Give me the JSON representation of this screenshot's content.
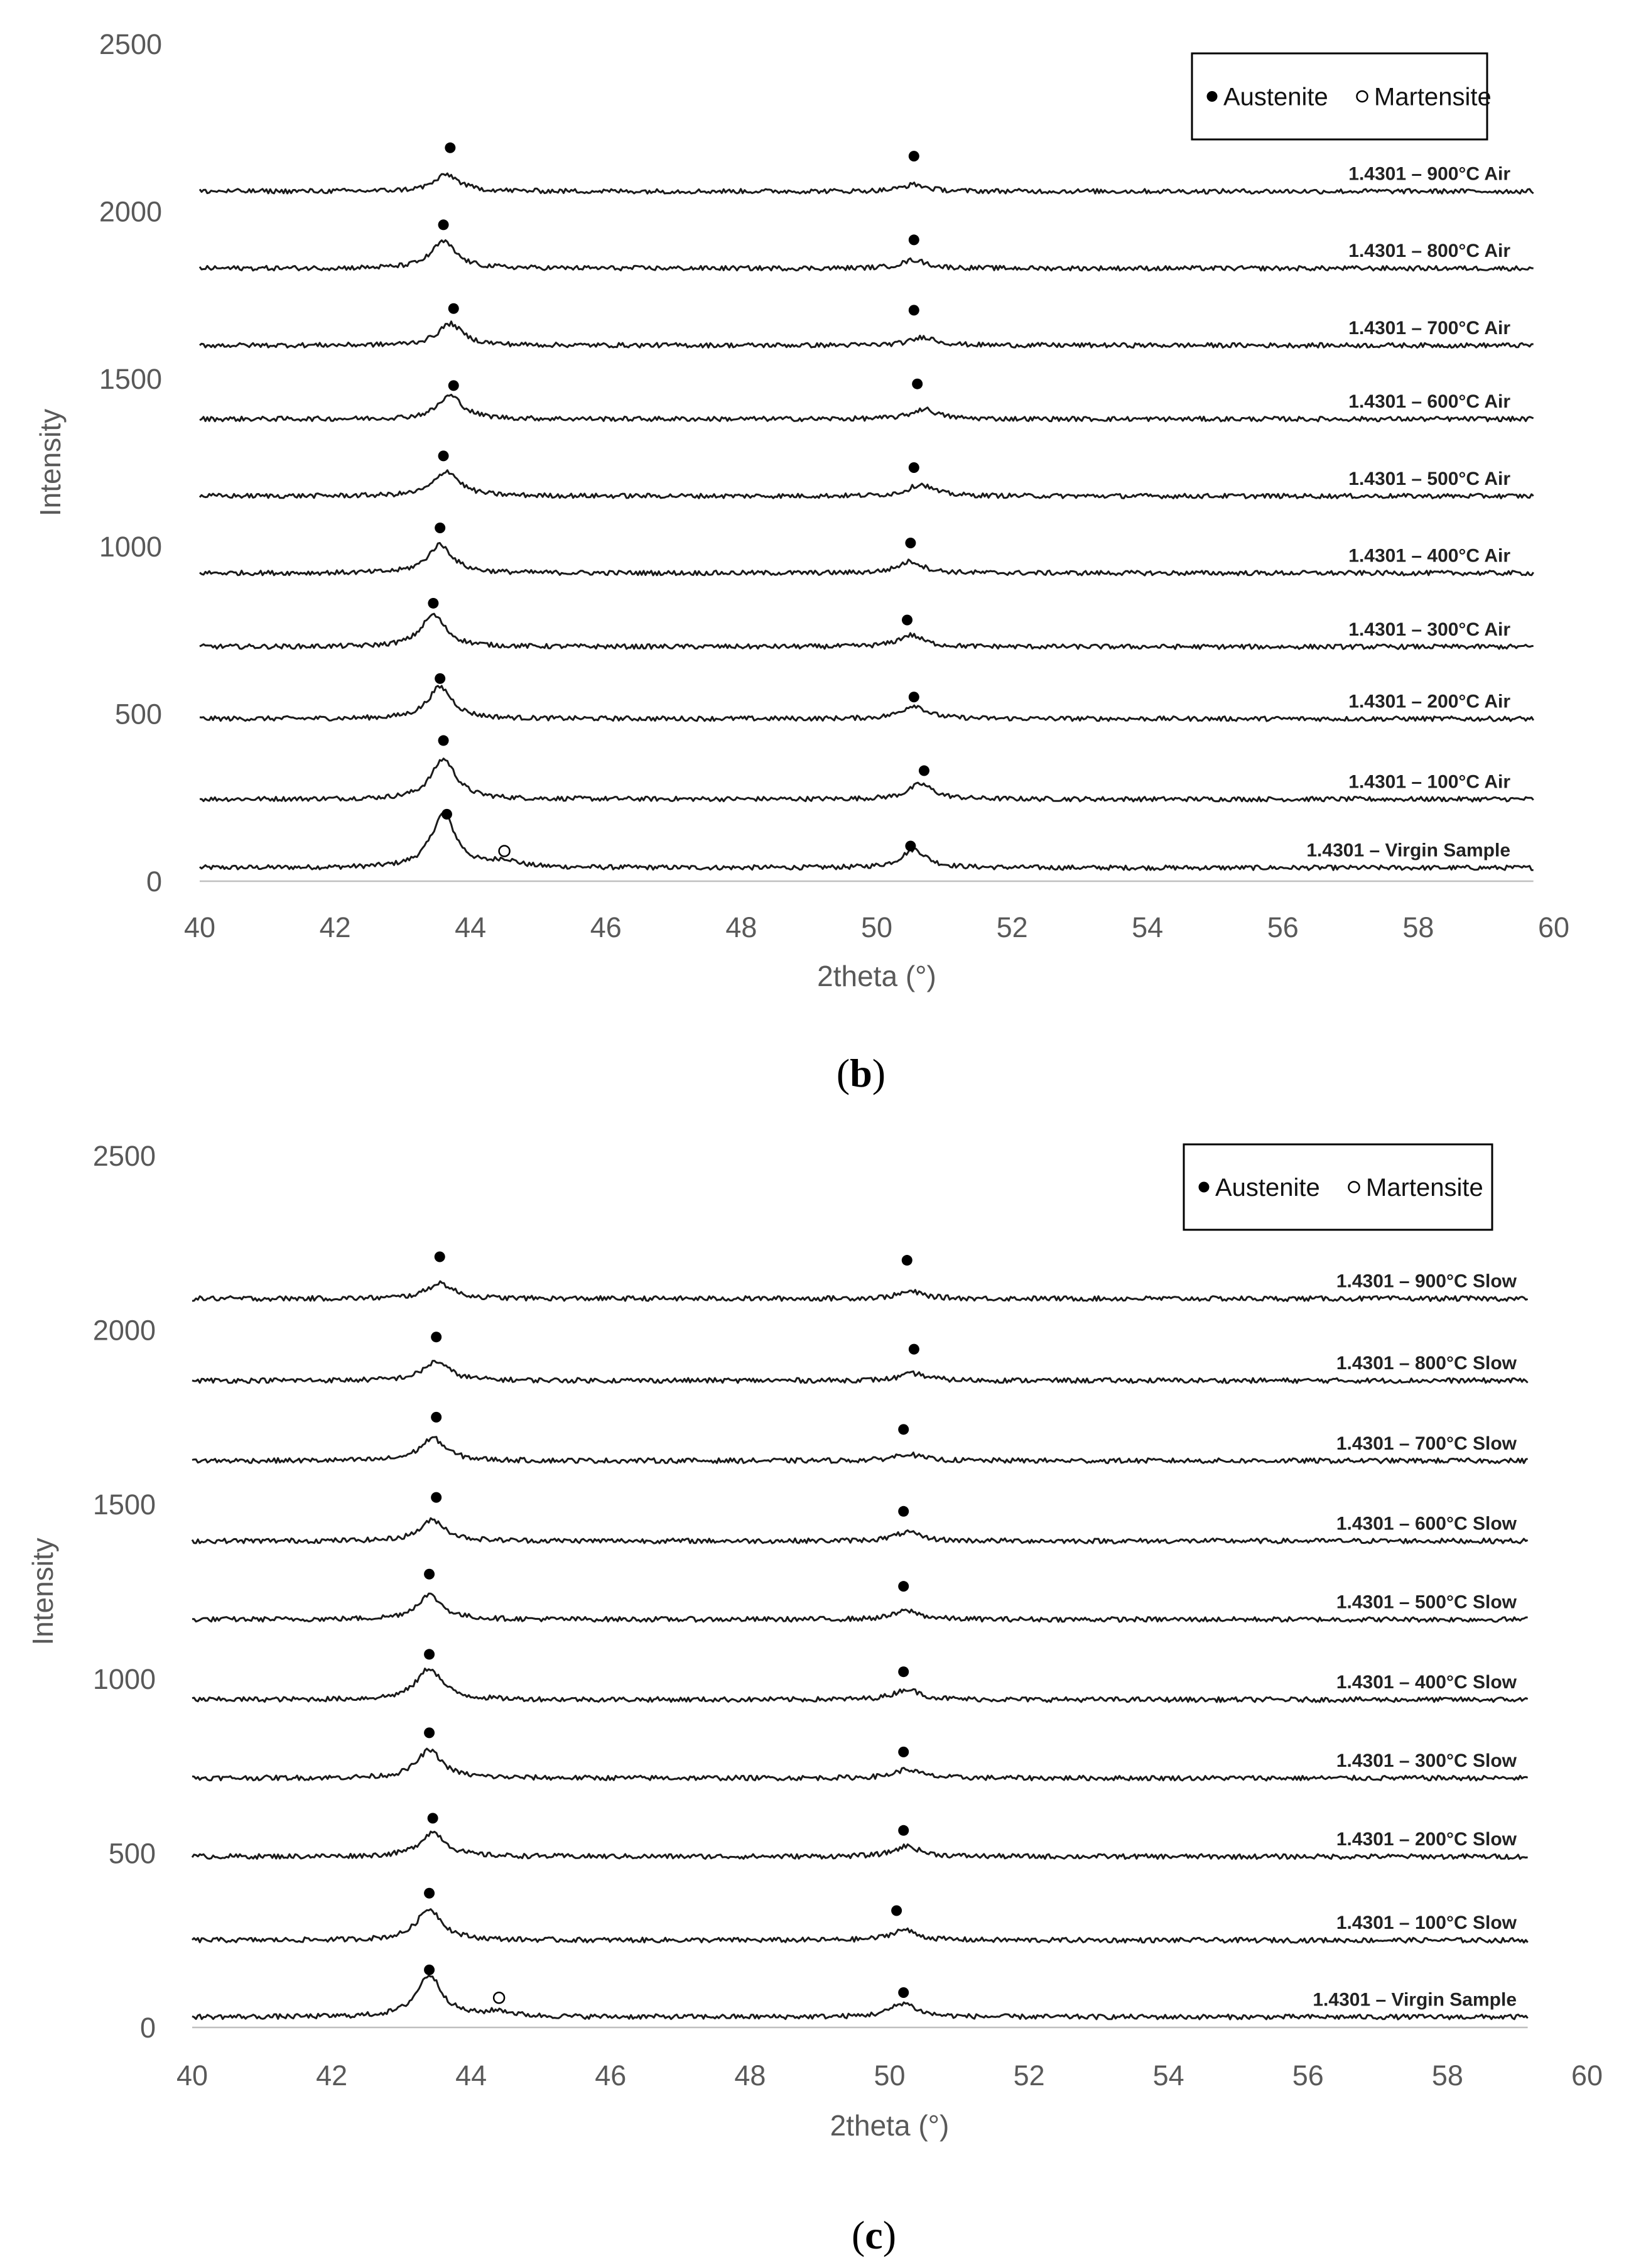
{
  "chart_data": [
    {
      "panel": "b",
      "type": "line",
      "title": "",
      "xlabel": "2theta (°)",
      "ylabel": "Intensity",
      "xlim": [
        40,
        60
      ],
      "ylim": [
        0,
        2500
      ],
      "xticks": [
        "40",
        "42",
        "44",
        "46",
        "48",
        "50",
        "52",
        "54",
        "56",
        "58",
        "60"
      ],
      "yticks": [
        "0",
        "500",
        "1000",
        "1500",
        "2000",
        "2500"
      ],
      "grid": false,
      "legend": {
        "position": "top-right",
        "austenite": "Austenite",
        "martensite": "Martensite"
      },
      "x_end": 59.7,
      "series": [
        {
          "name": "1.4301 – Virgin Sample",
          "offset": 40,
          "peaks": [
            {
              "x": 43.6,
              "h": 160
            },
            {
              "x": 44.5,
              "h": 20
            },
            {
              "x": 50.55,
              "h": 55
            }
          ],
          "austenite_markers": [
            {
              "x": 43.65,
              "y": 200
            },
            {
              "x": 50.5,
              "y": 105
            }
          ],
          "martensite_markers": [
            {
              "x": 44.5,
              "y": 90
            }
          ]
        },
        {
          "name": "1.4301 – 100°C Air",
          "offset": 245,
          "peaks": [
            {
              "x": 43.6,
              "h": 120
            },
            {
              "x": 50.65,
              "h": 45
            }
          ],
          "austenite_markers": [
            {
              "x": 43.6,
              "y": 420
            },
            {
              "x": 50.7,
              "y": 330
            }
          ],
          "martensite_markers": []
        },
        {
          "name": "1.4301 – 200°C Air",
          "offset": 485,
          "peaks": [
            {
              "x": 43.55,
              "h": 95
            },
            {
              "x": 50.55,
              "h": 40
            }
          ],
          "austenite_markers": [
            {
              "x": 43.55,
              "y": 605
            },
            {
              "x": 50.55,
              "y": 550
            }
          ],
          "martensite_markers": []
        },
        {
          "name": "1.4301 – 300°C Air",
          "offset": 700,
          "peaks": [
            {
              "x": 43.45,
              "h": 95
            },
            {
              "x": 50.5,
              "h": 35
            }
          ],
          "austenite_markers": [
            {
              "x": 43.45,
              "y": 830
            },
            {
              "x": 50.45,
              "y": 780
            }
          ],
          "martensite_markers": []
        },
        {
          "name": "1.4301 – 400°C Air",
          "offset": 920,
          "peaks": [
            {
              "x": 43.55,
              "h": 85
            },
            {
              "x": 50.5,
              "h": 35
            }
          ],
          "austenite_markers": [
            {
              "x": 43.55,
              "y": 1055
            },
            {
              "x": 50.5,
              "y": 1010
            }
          ],
          "martensite_markers": []
        },
        {
          "name": "1.4301 – 500°C Air",
          "offset": 1150,
          "peaks": [
            {
              "x": 43.65,
              "h": 75
            },
            {
              "x": 50.65,
              "h": 35
            }
          ],
          "austenite_markers": [
            {
              "x": 43.6,
              "y": 1270
            },
            {
              "x": 50.55,
              "y": 1235
            }
          ],
          "martensite_markers": []
        },
        {
          "name": "1.4301 – 600°C Air",
          "offset": 1380,
          "peaks": [
            {
              "x": 43.7,
              "h": 70
            },
            {
              "x": 50.7,
              "h": 30
            }
          ],
          "austenite_markers": [
            {
              "x": 43.75,
              "y": 1480
            },
            {
              "x": 50.6,
              "y": 1485
            }
          ],
          "martensite_markers": []
        },
        {
          "name": "1.4301 – 700°C Air",
          "offset": 1600,
          "peaks": [
            {
              "x": 43.7,
              "h": 65
            },
            {
              "x": 50.7,
              "h": 25
            }
          ],
          "austenite_markers": [
            {
              "x": 43.75,
              "y": 1710
            },
            {
              "x": 50.55,
              "y": 1705
            }
          ],
          "martensite_markers": []
        },
        {
          "name": "1.4301 – 800°C Air",
          "offset": 1830,
          "peaks": [
            {
              "x": 43.6,
              "h": 80
            },
            {
              "x": 50.55,
              "h": 25
            }
          ],
          "austenite_markers": [
            {
              "x": 43.6,
              "y": 1960
            },
            {
              "x": 50.55,
              "y": 1915
            }
          ],
          "martensite_markers": []
        },
        {
          "name": "1.4301 – 900°C Air",
          "offset": 2060,
          "peaks": [
            {
              "x": 43.65,
              "h": 50
            },
            {
              "x": 50.55,
              "h": 20
            }
          ],
          "austenite_markers": [
            {
              "x": 43.7,
              "y": 2190
            },
            {
              "x": 50.55,
              "y": 2165
            }
          ],
          "martensite_markers": []
        }
      ]
    },
    {
      "panel": "c",
      "type": "line",
      "title": "",
      "xlabel": "2theta (°)",
      "ylabel": "Intensity",
      "xlim": [
        40,
        60
      ],
      "ylim": [
        0,
        2500
      ],
      "xticks": [
        "40",
        "42",
        "44",
        "46",
        "48",
        "50",
        "52",
        "54",
        "56",
        "58",
        "60"
      ],
      "yticks": [
        "0",
        "500",
        "1000",
        "1500",
        "2000",
        "2500"
      ],
      "grid": false,
      "legend": {
        "position": "top-right",
        "austenite": "Austenite",
        "martensite": "Martensite"
      },
      "x_end": 59.15,
      "series": [
        {
          "name": "1.4301 – Virgin Sample",
          "offset": 30,
          "peaks": [
            {
              "x": 43.4,
              "h": 120
            },
            {
              "x": 44.4,
              "h": 15
            },
            {
              "x": 50.2,
              "h": 40
            }
          ],
          "austenite_markers": [
            {
              "x": 43.4,
              "y": 165
            },
            {
              "x": 50.2,
              "y": 100
            }
          ],
          "martensite_markers": [
            {
              "x": 44.4,
              "y": 85
            }
          ]
        },
        {
          "name": "1.4301 – 100°C Slow",
          "offset": 250,
          "peaks": [
            {
              "x": 43.4,
              "h": 90
            },
            {
              "x": 50.2,
              "h": 30
            }
          ],
          "austenite_markers": [
            {
              "x": 43.4,
              "y": 385
            },
            {
              "x": 50.1,
              "y": 335
            }
          ],
          "martensite_markers": []
        },
        {
          "name": "1.4301 – 200°C Slow",
          "offset": 490,
          "peaks": [
            {
              "x": 43.45,
              "h": 70
            },
            {
              "x": 50.25,
              "h": 30
            }
          ],
          "austenite_markers": [
            {
              "x": 43.45,
              "y": 600
            },
            {
              "x": 50.2,
              "y": 565
            }
          ],
          "martensite_markers": []
        },
        {
          "name": "1.4301 – 300°C Slow",
          "offset": 715,
          "peaks": [
            {
              "x": 43.4,
              "h": 80
            },
            {
              "x": 50.25,
              "h": 25
            }
          ],
          "austenite_markers": [
            {
              "x": 43.4,
              "y": 845
            },
            {
              "x": 50.2,
              "y": 790
            }
          ],
          "martensite_markers": []
        },
        {
          "name": "1.4301 – 400°C Slow",
          "offset": 940,
          "peaks": [
            {
              "x": 43.4,
              "h": 90
            },
            {
              "x": 50.25,
              "h": 30
            }
          ],
          "austenite_markers": [
            {
              "x": 43.4,
              "y": 1070
            },
            {
              "x": 50.2,
              "y": 1020
            }
          ],
          "martensite_markers": []
        },
        {
          "name": "1.4301 – 500°C Slow",
          "offset": 1170,
          "peaks": [
            {
              "x": 43.4,
              "h": 70
            },
            {
              "x": 50.25,
              "h": 25
            }
          ],
          "austenite_markers": [
            {
              "x": 43.4,
              "y": 1300
            },
            {
              "x": 50.2,
              "y": 1265
            }
          ],
          "martensite_markers": []
        },
        {
          "name": "1.4301 – 600°C Slow",
          "offset": 1395,
          "peaks": [
            {
              "x": 43.45,
              "h": 60
            },
            {
              "x": 50.25,
              "h": 25
            }
          ],
          "austenite_markers": [
            {
              "x": 43.5,
              "y": 1520
            },
            {
              "x": 50.2,
              "y": 1480
            }
          ],
          "martensite_markers": []
        },
        {
          "name": "1.4301 – 700°C Slow",
          "offset": 1625,
          "peaks": [
            {
              "x": 43.45,
              "h": 65
            },
            {
              "x": 50.25,
              "h": 20
            }
          ],
          "austenite_markers": [
            {
              "x": 43.5,
              "y": 1750
            },
            {
              "x": 50.2,
              "y": 1715
            }
          ],
          "martensite_markers": []
        },
        {
          "name": "1.4301 – 800°C Slow",
          "offset": 1855,
          "peaks": [
            {
              "x": 43.5,
              "h": 55
            },
            {
              "x": 50.35,
              "h": 20
            }
          ],
          "austenite_markers": [
            {
              "x": 43.5,
              "y": 1980
            },
            {
              "x": 50.35,
              "y": 1945
            }
          ],
          "martensite_markers": []
        },
        {
          "name": "1.4301 – 900°C Slow",
          "offset": 2090,
          "peaks": [
            {
              "x": 43.55,
              "h": 45
            },
            {
              "x": 50.3,
              "h": 20
            }
          ],
          "austenite_markers": [
            {
              "x": 43.55,
              "y": 2210
            },
            {
              "x": 50.25,
              "y": 2200
            }
          ],
          "martensite_markers": []
        }
      ]
    }
  ]
}
